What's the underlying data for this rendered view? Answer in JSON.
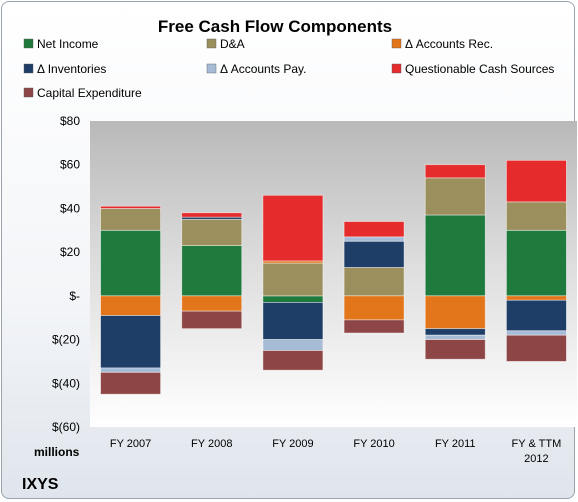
{
  "chart_data": {
    "type": "bar",
    "stacked": true,
    "title": "Free Cash Flow Components",
    "categories": [
      "FY 2007",
      "FY 2008",
      "FY 2009",
      "FY 2010",
      "FY 2011",
      "FY & TTM 2012"
    ],
    "ylabel": "",
    "unit_label": "millions",
    "company": "IXYS",
    "ylim": [
      -60,
      80
    ],
    "yticks": [
      80,
      60,
      40,
      20,
      0,
      -20,
      -40,
      -60
    ],
    "ytick_labels": [
      "$80",
      "$60",
      "$40",
      "$20",
      "$-",
      "$(20)",
      "$(40)",
      "$(60)"
    ],
    "grid": false,
    "legend_position": "top",
    "series": [
      {
        "name": "Net Income",
        "color": "#1f7a3e",
        "values": [
          30,
          23,
          -3,
          0,
          37,
          30
        ]
      },
      {
        "name": "D&A",
        "color": "#9b8f5e",
        "values": [
          10,
          12,
          15,
          13,
          17,
          13
        ]
      },
      {
        "name": "Δ Accounts Rec.",
        "color": "#e3761b",
        "values": [
          -9,
          -7,
          1,
          -11,
          -15,
          -2
        ]
      },
      {
        "name": "Δ Inventories",
        "color": "#1f3e67",
        "values": [
          -24,
          1,
          -17,
          12,
          -3,
          -14
        ]
      },
      {
        "name": "Δ Accounts Pay.",
        "color": "#a6bcd6",
        "values": [
          -2,
          0,
          -5,
          2,
          -2,
          -2
        ]
      },
      {
        "name": "Questionable Cash Sources",
        "color": "#e52b2b",
        "values": [
          1,
          2,
          30,
          7,
          6,
          19
        ]
      },
      {
        "name": "Capital Expenditure",
        "color": "#8e4545",
        "values": [
          -10,
          -8,
          -9,
          -6,
          -9,
          -12
        ]
      }
    ]
  }
}
